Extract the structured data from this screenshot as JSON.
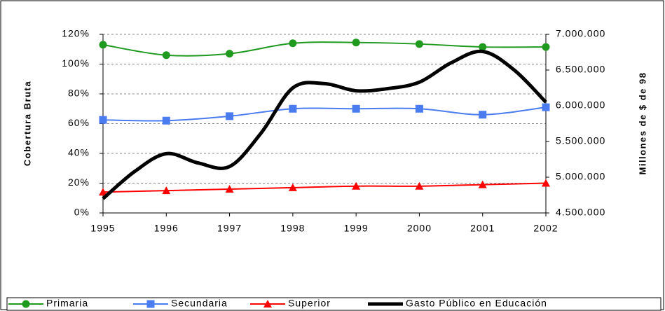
{
  "chart_data": {
    "type": "line",
    "ylabel": "Cobertura Bruta",
    "y2label": "Millones de $ de 98",
    "x": [
      1995,
      1996,
      1997,
      1998,
      1999,
      2000,
      2001,
      2002
    ],
    "xlim": [
      1995,
      2002
    ],
    "xticks": [
      1995,
      1996,
      1997,
      1998,
      1999,
      2000,
      2001,
      2002
    ],
    "ylim": [
      0,
      120
    ],
    "yticks": [
      {
        "value": 0,
        "label": "0%"
      },
      {
        "value": 20,
        "label": "20%"
      },
      {
        "value": 40,
        "label": "40%"
      },
      {
        "value": 60,
        "label": "60%"
      },
      {
        "value": 80,
        "label": "80%"
      },
      {
        "value": 100,
        "label": "100%"
      },
      {
        "value": 120,
        "label": "120%"
      }
    ],
    "y2lim": [
      4500000,
      7000000
    ],
    "y2ticks": [
      {
        "value": 4500000,
        "label": "4.500.000"
      },
      {
        "value": 5000000,
        "label": "5.000.000"
      },
      {
        "value": 5500000,
        "label": "5.500.000"
      },
      {
        "value": 6000000,
        "label": "6.000.000"
      },
      {
        "value": 6500000,
        "label": "6.500.000"
      },
      {
        "value": 7000000,
        "label": "7.000.000"
      }
    ],
    "grid": true,
    "legend": "bottom",
    "series": [
      {
        "name": "Primaria",
        "color": "#1f9a1f",
        "marker": "circle",
        "values": [
          113,
          106,
          107,
          114,
          114.5,
          113.5,
          111.5,
          111.5
        ]
      },
      {
        "name": "Secundaria",
        "color": "#4a7cf0",
        "marker": "square",
        "values": [
          62.5,
          62,
          65,
          70,
          70,
          70,
          66,
          71
        ]
      },
      {
        "name": "Superior",
        "color": "#ff0000",
        "marker": "triangle",
        "values": [
          14,
          15,
          16,
          17,
          18,
          18,
          19,
          20
        ]
      },
      {
        "name": "Gasto Público en Educación",
        "color": "#000000",
        "axis": "y2",
        "x": [
          1995,
          1995.5,
          1996,
          1996.5,
          1997,
          1997.5,
          1998,
          1998.5,
          1999,
          1999.5,
          2000,
          2000.5,
          2001,
          2001.5,
          2002
        ],
        "values": [
          4700000,
          5080000,
          5330000,
          5200000,
          5150000,
          5620000,
          6250000,
          6310000,
          6210000,
          6240000,
          6330000,
          6600000,
          6760000,
          6500000,
          6050000
        ]
      }
    ]
  }
}
